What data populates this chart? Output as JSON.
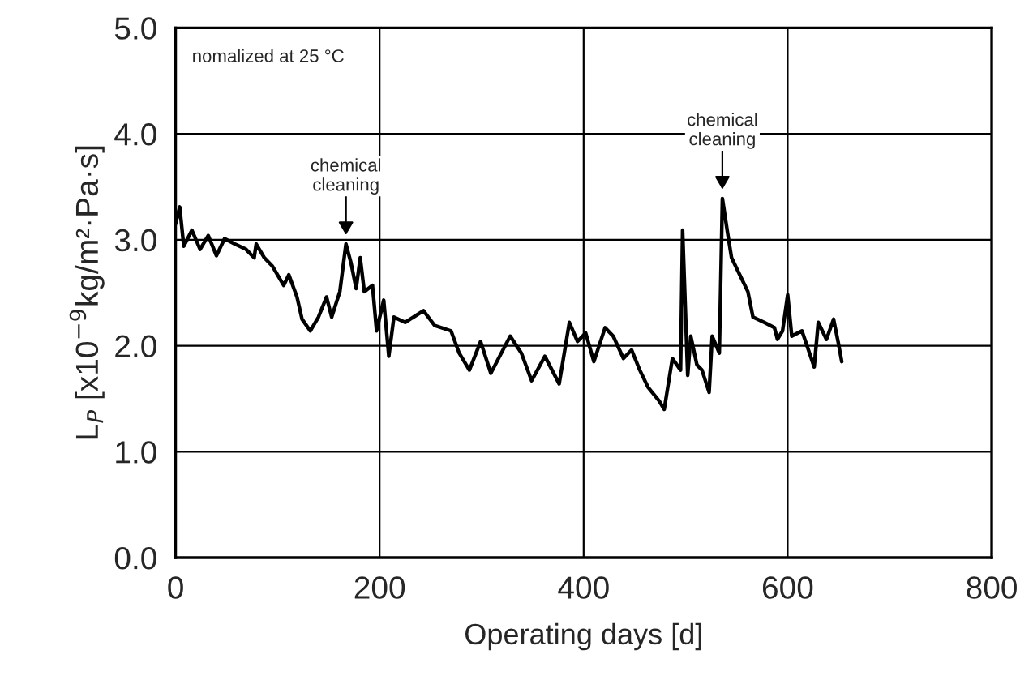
{
  "chart_data": {
    "type": "line",
    "xlabel": "Operating days [d]",
    "ylabel": "L$_{P}$ [x10$^{−9}$kg/m²·Pa·s]",
    "xlim": [
      0,
      800
    ],
    "xticks": [
      0,
      200,
      400,
      600,
      800
    ],
    "ylim": [
      0,
      5
    ],
    "yticks": [
      {
        "value": 0,
        "label": "0.0"
      },
      {
        "value": 1,
        "label": "1.0"
      },
      {
        "value": 2,
        "label": "2.0"
      },
      {
        "value": 3,
        "label": "3.0"
      },
      {
        "value": 4,
        "label": "4.0"
      },
      {
        "value": 5,
        "label": "5.0"
      }
    ],
    "grid": true,
    "marker": "none",
    "line_style": "solid",
    "series": [
      {
        "color": "#000000",
        "x": [
          0,
          4,
          8,
          16,
          24,
          32,
          40,
          48,
          58,
          69,
          77,
          79,
          87,
          95,
          106,
          111,
          119,
          124,
          132,
          140,
          148,
          153,
          161,
          167,
          172,
          177,
          181,
          185,
          193,
          197,
          204,
          209,
          214,
          225,
          243,
          254,
          270,
          278,
          288,
          299,
          309,
          328,
          339,
          349,
          362,
          376,
          386,
          394,
          402,
          410,
          421,
          429,
          439,
          447,
          455,
          463,
          474,
          479,
          487,
          495,
          497,
          502,
          505,
          511,
          516,
          523,
          526,
          533,
          536,
          541,
          545,
          553,
          561,
          566,
          577,
          587,
          590,
          595,
          600,
          604,
          614,
          626,
          630,
          638,
          645,
          650,
          653
        ],
        "values": [
          3.15,
          3.31,
          2.94,
          3.09,
          2.91,
          3.04,
          2.85,
          3.01,
          2.96,
          2.91,
          2.83,
          2.96,
          2.83,
          2.75,
          2.57,
          2.67,
          2.46,
          2.25,
          2.14,
          2.27,
          2.46,
          2.27,
          2.51,
          2.96,
          2.78,
          2.54,
          2.83,
          2.51,
          2.57,
          2.14,
          2.43,
          1.9,
          2.27,
          2.22,
          2.33,
          2.19,
          2.14,
          1.93,
          1.77,
          2.04,
          1.74,
          2.09,
          1.93,
          1.67,
          1.9,
          1.64,
          2.22,
          2.04,
          2.12,
          1.85,
          2.17,
          2.09,
          1.88,
          1.96,
          1.77,
          1.61,
          1.48,
          1.4,
          1.88,
          1.77,
          3.09,
          1.72,
          2.09,
          1.82,
          1.77,
          1.56,
          2.09,
          1.93,
          3.39,
          3.07,
          2.83,
          2.67,
          2.51,
          2.27,
          2.22,
          2.17,
          2.06,
          2.14,
          2.48,
          2.09,
          2.14,
          1.8,
          2.22,
          2.06,
          2.25,
          2.01,
          1.85
        ]
      }
    ],
    "annotations": [
      "nomalized at 25 °C",
      {
        "text": "chemical\ncleaning",
        "x": 167,
        "y": 2.96
      },
      {
        "text": "chemical\ncleaning",
        "x": 536,
        "y": 3.39
      }
    ]
  }
}
